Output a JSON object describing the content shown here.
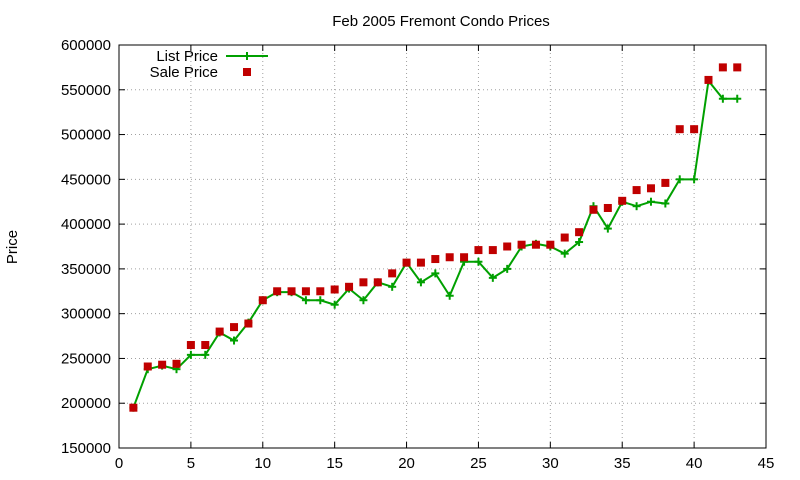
{
  "chart_data": {
    "type": "line",
    "title": "Feb 2005 Fremont Condo Prices",
    "xlabel": "",
    "ylabel": "Price",
    "xlim": [
      0,
      45
    ],
    "ylim": [
      150000,
      600000
    ],
    "xticks": [
      0,
      5,
      10,
      15,
      20,
      25,
      30,
      35,
      40,
      45
    ],
    "yticks": [
      150000,
      200000,
      250000,
      300000,
      350000,
      400000,
      450000,
      500000,
      550000,
      600000
    ],
    "grid": true,
    "legend_position": "top-left",
    "x": [
      1,
      2,
      3,
      4,
      5,
      6,
      7,
      8,
      9,
      10,
      11,
      12,
      13,
      14,
      15,
      16,
      17,
      18,
      19,
      20,
      21,
      22,
      23,
      24,
      25,
      26,
      27,
      28,
      29,
      30,
      31,
      32,
      33,
      34,
      35,
      36,
      37,
      38,
      39,
      40,
      41,
      42,
      43
    ],
    "series": [
      {
        "name": "List Price",
        "style": "lines+crosses",
        "color": "#00a000",
        "values": [
          195000,
          238000,
          242000,
          238000,
          254000,
          254000,
          279000,
          270000,
          290000,
          315000,
          324000,
          324000,
          315000,
          315000,
          310000,
          328000,
          315000,
          335000,
          330000,
          357000,
          335000,
          345000,
          320000,
          358000,
          358000,
          340000,
          350000,
          375000,
          378000,
          375000,
          367000,
          380000,
          420000,
          395000,
          425000,
          420000,
          425000,
          423000,
          450000,
          450000,
          560000,
          540000,
          540000
        ]
      },
      {
        "name": "Sale Price",
        "style": "squares",
        "color": "#c00000",
        "values": [
          195000,
          241000,
          243000,
          244000,
          265000,
          265000,
          280000,
          285000,
          289000,
          315000,
          325000,
          325000,
          325000,
          325000,
          327000,
          330000,
          335000,
          335000,
          345000,
          357000,
          357000,
          361000,
          363000,
          363000,
          371000,
          371000,
          375000,
          377000,
          377000,
          377000,
          385000,
          391000,
          416000,
          418000,
          426000,
          438000,
          440000,
          446000,
          506000,
          506000,
          561000,
          575000,
          575000
        ]
      }
    ]
  }
}
